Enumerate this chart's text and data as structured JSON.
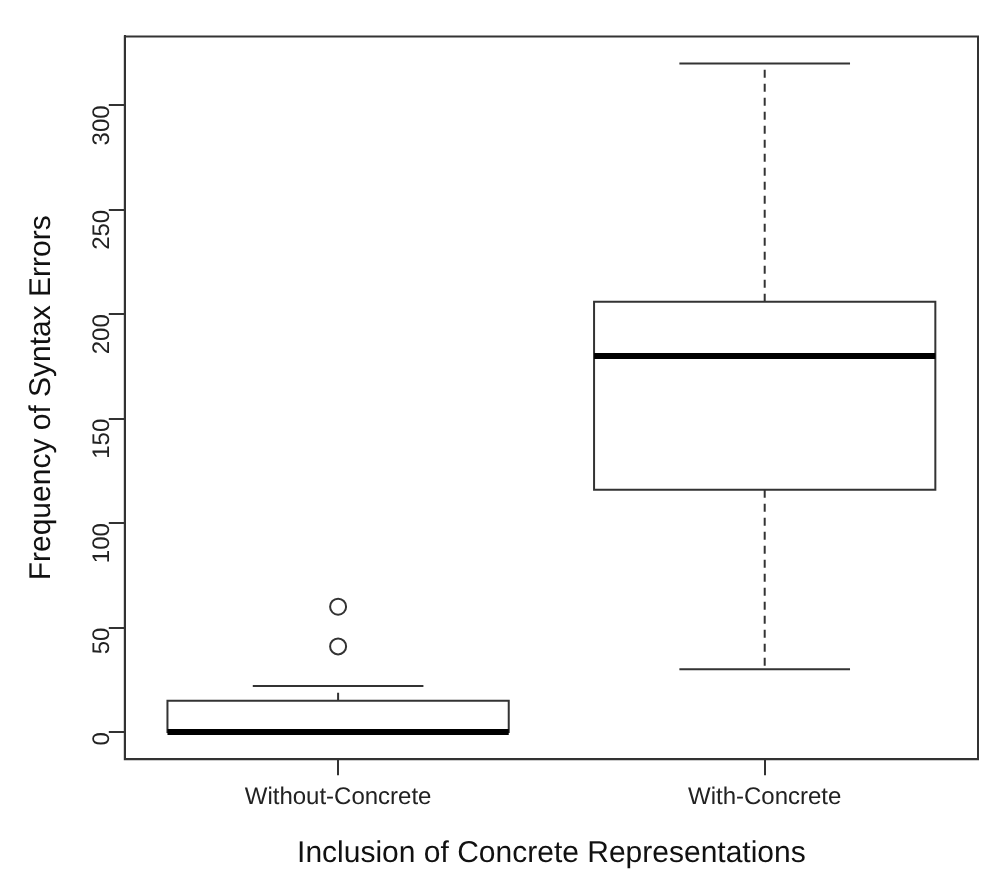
{
  "chart_data": {
    "type": "box",
    "xlabel": "Inclusion of Concrete Representations",
    "ylabel": "Frequency of Syntax Errors",
    "categories": [
      "Without-Concrete",
      "With-Concrete"
    ],
    "boxes": [
      {
        "low": 0,
        "q1": 0,
        "median": 0,
        "q3": 15,
        "high": 22,
        "outliers": [
          41,
          60
        ]
      },
      {
        "low": 30,
        "q1": 116,
        "median": 180,
        "q3": 206,
        "high": 320
      }
    ],
    "ylim": [
      -13,
      333
    ],
    "yticks": [
      0,
      50,
      100,
      150,
      200,
      250,
      300
    ],
    "grid": false,
    "legend": false
  }
}
